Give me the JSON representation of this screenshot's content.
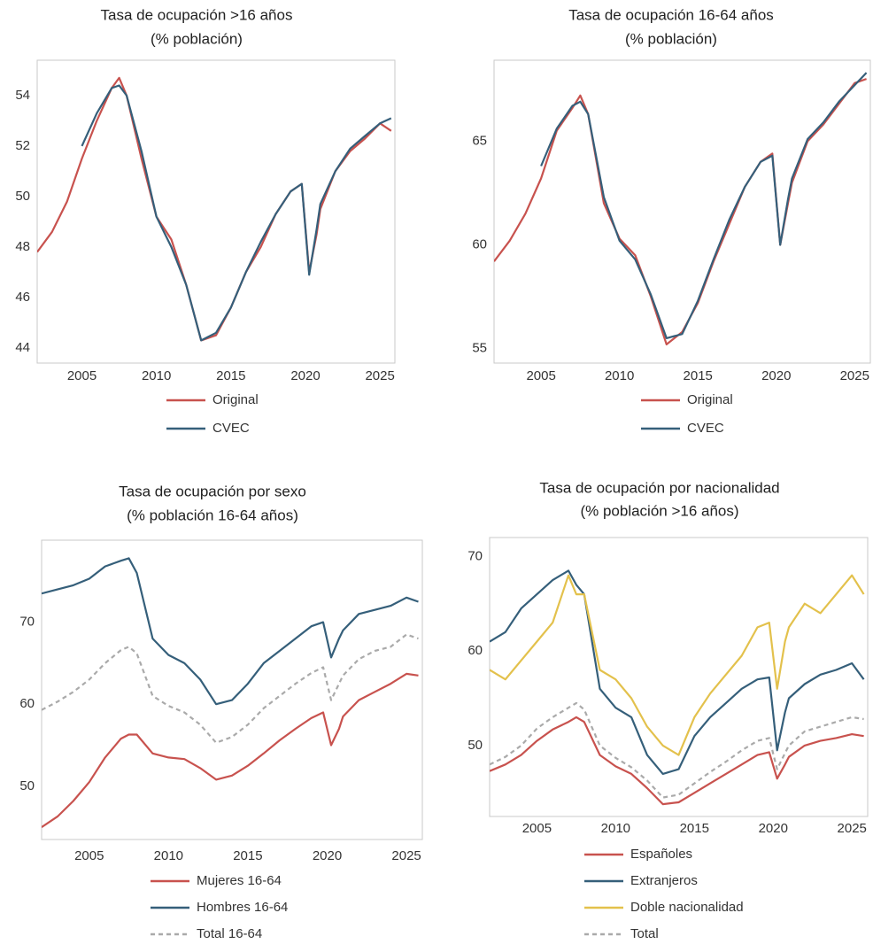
{
  "chart_data": [
    {
      "type": "line",
      "title": "Tasa de ocupación >16 años",
      "subtitle": "(% población)",
      "x": [
        2002,
        2003,
        2004,
        2005,
        2006,
        2007,
        2007.5,
        2008,
        2009,
        2010,
        2011,
        2012,
        2013,
        2014,
        2015,
        2016,
        2017,
        2018,
        2019,
        2019.75,
        2020.25,
        2020.75,
        2021,
        2022,
        2023,
        2024,
        2025,
        2025.75
      ],
      "series": [
        {
          "name": "Original",
          "color": "#c8524e",
          "values": [
            47.8,
            48.6,
            49.8,
            51.5,
            53.0,
            54.3,
            54.7,
            54.0,
            51.5,
            49.2,
            48.3,
            46.5,
            44.3,
            44.5,
            45.6,
            47.0,
            48.0,
            49.3,
            50.2,
            50.5,
            47.0,
            48.5,
            49.5,
            51.0,
            51.8,
            52.3,
            52.9,
            52.6
          ]
        },
        {
          "name": "CVEC",
          "color": "#355f7a",
          "values": [
            null,
            null,
            null,
            52.0,
            53.3,
            54.3,
            54.4,
            54.0,
            51.8,
            49.2,
            48.0,
            46.5,
            44.3,
            44.6,
            45.6,
            47.0,
            48.2,
            49.3,
            50.2,
            50.5,
            46.9,
            48.7,
            49.7,
            51.0,
            51.9,
            52.4,
            52.9,
            53.1
          ]
        }
      ],
      "xlim": [
        2002,
        2026
      ],
      "xticks": [
        2005,
        2010,
        2015,
        2020,
        2025
      ],
      "ylim": [
        43.4,
        55.4
      ],
      "yticks": [
        44,
        46,
        48,
        50,
        52,
        54
      ],
      "grid": false,
      "legend": "below"
    },
    {
      "type": "line",
      "title": "Tasa de ocupación 16-64 años",
      "subtitle": "(% población)",
      "x": [
        2002,
        2003,
        2004,
        2005,
        2006,
        2007,
        2007.5,
        2008,
        2009,
        2010,
        2011,
        2012,
        2013,
        2014,
        2015,
        2016,
        2017,
        2018,
        2019,
        2019.75,
        2020.25,
        2020.75,
        2021,
        2022,
        2023,
        2024,
        2025,
        2025.75
      ],
      "series": [
        {
          "name": "Original",
          "color": "#c8524e",
          "values": [
            59.2,
            60.2,
            61.5,
            63.2,
            65.5,
            66.6,
            67.2,
            66.3,
            62.0,
            60.3,
            59.5,
            57.5,
            55.2,
            55.8,
            57.2,
            59.2,
            61.0,
            62.8,
            64.0,
            64.4,
            60.0,
            62.0,
            63.0,
            65.0,
            65.8,
            66.8,
            67.8,
            68.0
          ]
        },
        {
          "name": "CVEC",
          "color": "#355f7a",
          "values": [
            null,
            null,
            null,
            63.8,
            65.6,
            66.7,
            66.9,
            66.3,
            62.3,
            60.2,
            59.3,
            57.6,
            55.5,
            55.7,
            57.3,
            59.3,
            61.2,
            62.8,
            64.0,
            64.3,
            60.0,
            62.2,
            63.2,
            65.1,
            65.9,
            66.9,
            67.7,
            68.3
          ]
        }
      ],
      "xlim": [
        2002,
        2026
      ],
      "xticks": [
        2005,
        2010,
        2015,
        2020,
        2025
      ],
      "ylim": [
        54.3,
        68.9
      ],
      "yticks": [
        55,
        60,
        65
      ],
      "grid": false,
      "legend": "below"
    },
    {
      "type": "line",
      "title": "Tasa de ocupación por sexo",
      "subtitle": "(% población 16-64 años)",
      "x": [
        2002,
        2003,
        2004,
        2005,
        2006,
        2007,
        2007.5,
        2008,
        2009,
        2010,
        2011,
        2012,
        2013,
        2014,
        2015,
        2016,
        2017,
        2018,
        2019,
        2019.75,
        2020.25,
        2020.75,
        2021,
        2022,
        2023,
        2024,
        2025,
        2025.75
      ],
      "series": [
        {
          "name": "Mujeres 16-64",
          "color": "#c8524e",
          "values": [
            45.0,
            46.3,
            48.2,
            50.5,
            53.5,
            55.8,
            56.3,
            56.3,
            54.0,
            53.5,
            53.3,
            52.2,
            50.8,
            51.3,
            52.5,
            54.0,
            55.6,
            57.0,
            58.3,
            59.0,
            55.0,
            57.0,
            58.5,
            60.5,
            61.5,
            62.5,
            63.7,
            63.5
          ]
        },
        {
          "name": "Hombres 16-64",
          "color": "#355f7a",
          "values": [
            73.5,
            74.0,
            74.5,
            75.3,
            76.8,
            77.5,
            77.8,
            76.0,
            68.0,
            66.0,
            65.0,
            63.0,
            60.0,
            60.5,
            62.5,
            65.0,
            66.5,
            68.0,
            69.5,
            70.0,
            65.7,
            68.0,
            69.0,
            71.0,
            71.5,
            72.0,
            73.0,
            72.5
          ]
        },
        {
          "name": "Total 16-64",
          "color": "#aaaaaa",
          "dashed": true,
          "values": [
            59.3,
            60.3,
            61.5,
            63.0,
            65.0,
            66.6,
            67.0,
            66.2,
            61.0,
            59.8,
            59.0,
            57.5,
            55.3,
            56.0,
            57.5,
            59.5,
            61.0,
            62.5,
            63.8,
            64.5,
            60.5,
            62.5,
            63.5,
            65.5,
            66.5,
            67.0,
            68.5,
            68.0
          ]
        }
      ],
      "xlim": [
        2002,
        2026
      ],
      "xticks": [
        2005,
        2010,
        2015,
        2020,
        2025
      ],
      "ylim": [
        43.5,
        80
      ],
      "yticks": [
        50,
        60,
        70
      ],
      "grid": false,
      "legend": "below"
    },
    {
      "type": "line",
      "title": "Tasa de ocupación por nacionalidad",
      "subtitle": "(% población >16 años)",
      "x": [
        2002,
        2003,
        2004,
        2005,
        2006,
        2007,
        2007.5,
        2008,
        2009,
        2010,
        2011,
        2012,
        2013,
        2014,
        2015,
        2016,
        2017,
        2018,
        2019,
        2019.75,
        2020.25,
        2020.75,
        2021,
        2022,
        2023,
        2024,
        2025,
        2025.75
      ],
      "series": [
        {
          "name": "Españoles",
          "color": "#c8524e",
          "values": [
            47.3,
            48.0,
            49.0,
            50.5,
            51.7,
            52.5,
            53.0,
            52.5,
            49.0,
            47.8,
            47.0,
            45.5,
            43.8,
            44.0,
            45.0,
            46.0,
            47.0,
            48.0,
            49.0,
            49.3,
            46.5,
            48.0,
            48.8,
            50.0,
            50.5,
            50.8,
            51.2,
            51.0
          ]
        },
        {
          "name": "Extranjeros",
          "color": "#355f7a",
          "values": [
            61.0,
            62.0,
            64.5,
            66.0,
            67.5,
            68.5,
            67.0,
            66.0,
            56.0,
            54.0,
            53.0,
            49.0,
            47.0,
            47.5,
            51.0,
            53.0,
            54.5,
            56.0,
            57.0,
            57.2,
            49.5,
            53.5,
            55.0,
            56.5,
            57.5,
            58.0,
            58.7,
            57.0
          ]
        },
        {
          "name": "Doble nacionalidad",
          "color": "#e3c14c",
          "values": [
            58.0,
            57.0,
            59.0,
            61.0,
            63.0,
            68.0,
            66.0,
            66.0,
            58.0,
            57.0,
            55.0,
            52.0,
            50.0,
            49.0,
            53.0,
            55.5,
            57.5,
            59.5,
            62.5,
            63.0,
            56.0,
            61.0,
            62.5,
            65.0,
            64.0,
            66.0,
            68.0,
            66.0
          ]
        },
        {
          "name": "Total",
          "color": "#aaaaaa",
          "dashed": true,
          "values": [
            48.0,
            48.8,
            50.0,
            51.8,
            53.0,
            54.0,
            54.5,
            53.8,
            50.0,
            48.7,
            47.7,
            46.3,
            44.5,
            44.8,
            46.0,
            47.2,
            48.3,
            49.5,
            50.5,
            50.8,
            47.5,
            49.2,
            50.0,
            51.5,
            52.0,
            52.5,
            53.0,
            52.8
          ]
        }
      ],
      "xlim": [
        2002,
        2026
      ],
      "xticks": [
        2005,
        2010,
        2015,
        2020,
        2025
      ],
      "ylim": [
        42.5,
        72
      ],
      "yticks": [
        50,
        60,
        70
      ],
      "grid": false,
      "legend": "below"
    }
  ]
}
